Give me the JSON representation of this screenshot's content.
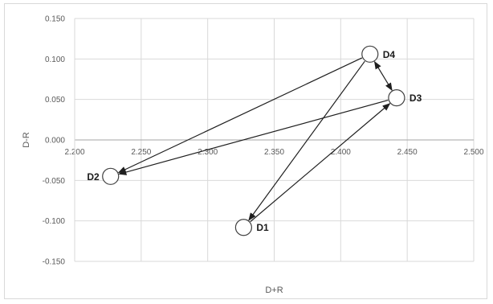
{
  "chart_data": {
    "type": "scatter",
    "title": "",
    "xlabel": "D+R",
    "ylabel": "D-R",
    "xlim": [
      2.2,
      2.5
    ],
    "ylim": [
      -0.15,
      0.15
    ],
    "x_ticks": [
      "2.200",
      "2.250",
      "2.300",
      "2.350",
      "2.400",
      "2.450",
      "2.500"
    ],
    "y_ticks": [
      "0.150",
      "0.100",
      "0.050",
      "0.000",
      "-0.050",
      "-0.100",
      "-0.150"
    ],
    "x_tick_values": [
      2.2,
      2.25,
      2.3,
      2.35,
      2.4,
      2.45,
      2.5
    ],
    "y_tick_values": [
      0.15,
      0.1,
      0.05,
      0.0,
      -0.05,
      -0.1,
      -0.15
    ],
    "grid": true,
    "points": [
      {
        "label": "D1",
        "x": 2.327,
        "y": -0.108
      },
      {
        "label": "D2",
        "x": 2.227,
        "y": -0.045
      },
      {
        "label": "D3",
        "x": 2.442,
        "y": 0.052
      },
      {
        "label": "D4",
        "x": 2.422,
        "y": 0.106
      }
    ],
    "arrows": [
      {
        "from": "D1",
        "to": "D3"
      },
      {
        "from": "D3",
        "to": "D2"
      },
      {
        "from": "D4",
        "to": "D2"
      },
      {
        "from": "D4",
        "to": "D1"
      },
      {
        "from": "D4",
        "to": "D3",
        "bidirectional": true
      }
    ],
    "colors": {
      "grid": "#d9d9d9",
      "axis": "#a6a6a6",
      "line": "#1f1f1f",
      "marker_fill": "#ffffff",
      "marker_stroke": "#404040"
    }
  }
}
